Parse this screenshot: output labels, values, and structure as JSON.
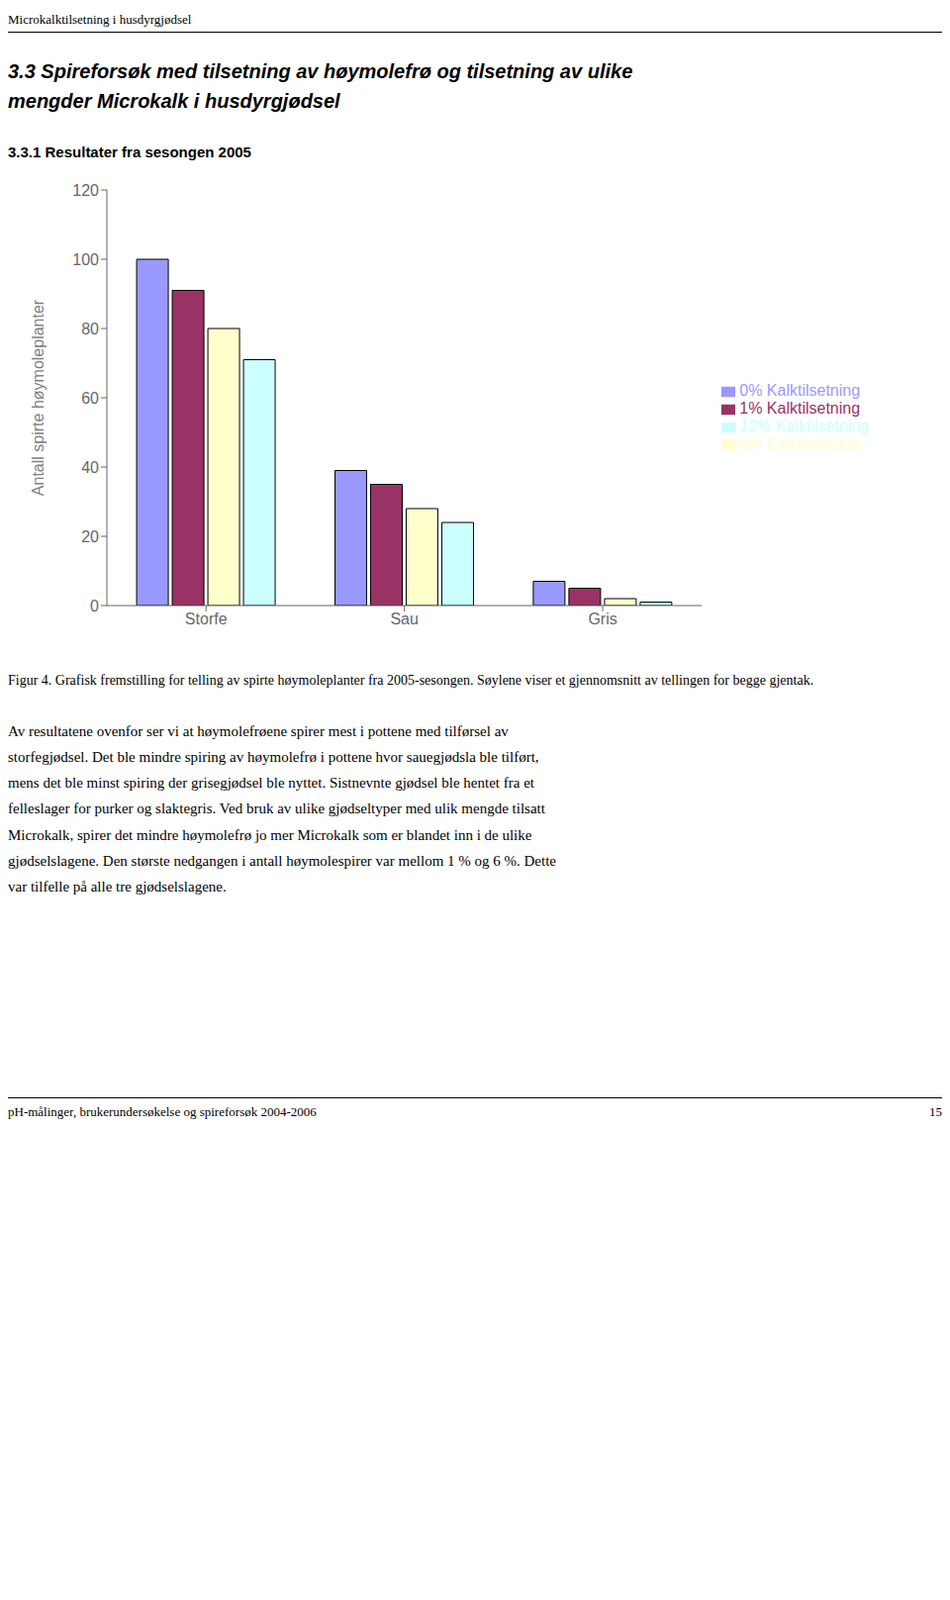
{
  "header_text": "Microkalktilsetning i husdyrgjødsel",
  "section_title_line1": "3.3 Spireforsøk med tilsetning av høymolefrø og tilsetning av ulike",
  "section_title_line2": "mengder Microkalk i husdyrgjødsel",
  "subsection_title": "3.3.1 Resultater fra sesongen 2005",
  "figure_caption": "Figur 4. Grafisk fremstilling for telling av spirte høymoleplanter fra 2005-sesongen. Søylene viser et gjennomsnitt av tellingen for begge gjentak.",
  "body_text": [
    "Av resultatene ovenfor ser vi at høymolefrøene spirer mest i pottene med tilførsel av",
    "storfegjødsel. Det ble mindre spiring av høymolefrø i pottene hvor sauegjødsla ble tilført,",
    "mens det ble minst spiring der grisegjødsel ble nyttet. Sistnevnte gjødsel ble hentet fra et",
    "felleslager for purker og slaktegris. Ved bruk av ulike gjødseltyper med ulik mengde tilsatt",
    "Microkalk, spirer det mindre høymolefrø jo mer Microkalk som er blandet inn i de ulike",
    "gjødselslagene. Den største nedgangen i antall høymolespirer var mellom 1 % og 6 %. Dette",
    "var tilfelle på alle tre gjødselslagene."
  ],
  "footer_text": "pH-målinger, brukerundersøkelse og spireforsøk 2004-2006",
  "footer_page": "15",
  "chart_data": {
    "type": "bar",
    "categories": [
      "Storfe",
      "Sau",
      "Gris"
    ],
    "series": [
      {
        "name": "0% Kalktilsetning",
        "color": "#9999FF",
        "values": [
          100,
          39,
          7
        ]
      },
      {
        "name": "1% Kalktilsetning",
        "color": "#993366",
        "values": [
          91,
          35,
          5
        ]
      },
      {
        "name": "6% Kalktilsetning",
        "color": "#FFFFCC",
        "values": [
          80,
          28,
          2
        ]
      },
      {
        "name": "12% Kalktilsetning",
        "color": "#CCFFFF",
        "values": [
          71,
          24,
          1
        ]
      }
    ],
    "ylabel": "Antall spirte høymoleplanter",
    "ylim": [
      0,
      120
    ],
    "yticks": [
      0,
      20,
      40,
      60,
      80,
      100,
      120
    ],
    "grid": false,
    "legend": "right"
  }
}
